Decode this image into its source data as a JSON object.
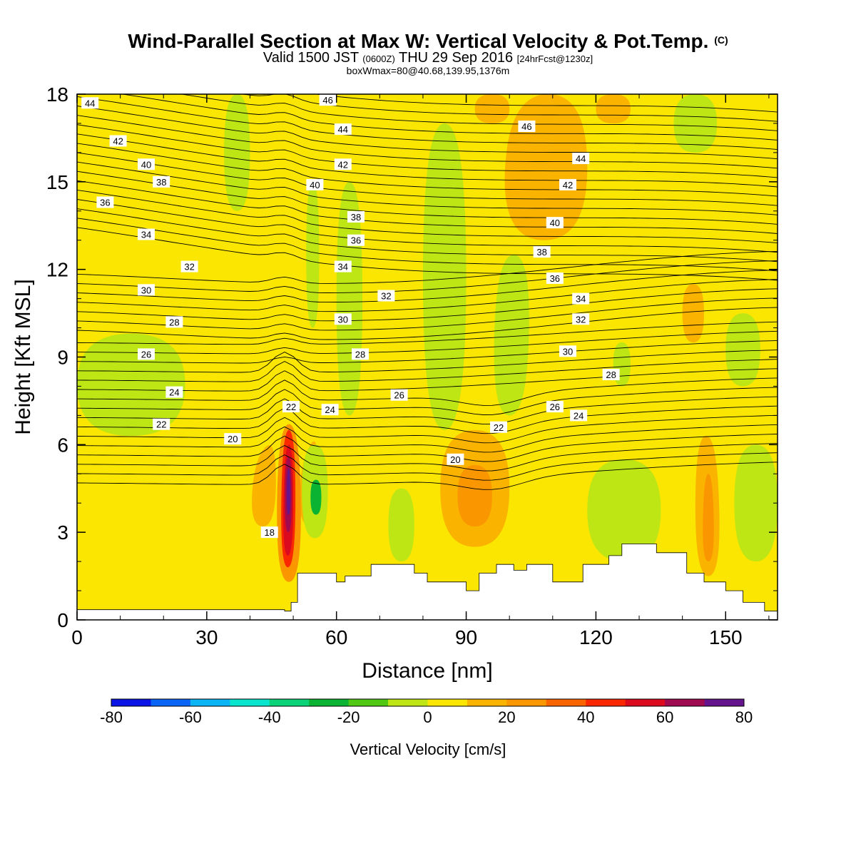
{
  "header": {
    "title": "Wind-Parallel Section at Max W: Vertical Velocity & Pot.Temp.",
    "copyright_mark": "(C)",
    "subtitle_a": "Valid 1500 JST",
    "subtitle_b": "(0600Z)",
    "subtitle_c": "THU 29 Sep 2016",
    "subtitle_d": "[24hrFcst@1230z]",
    "box_info": "boxWmax=80@40.68,139.95,1376m"
  },
  "chart_data": {
    "type": "heatmap",
    "xlabel": "Distance [nm]",
    "ylabel": "Height [Kft MSL]",
    "xlim": [
      0,
      162
    ],
    "ylim": [
      0,
      18
    ],
    "xticks": [
      0,
      30,
      60,
      90,
      120,
      150
    ],
    "yticks": [
      0,
      3,
      6,
      9,
      12,
      15,
      18
    ],
    "colorbar": {
      "label": "Vertical Velocity [cm/s]",
      "ticks": [
        -80,
        -60,
        -40,
        -20,
        0,
        20,
        40,
        60,
        80
      ],
      "bins": [
        -80,
        -70,
        -60,
        -50,
        -40,
        -30,
        -20,
        -10,
        0,
        10,
        20,
        30,
        40,
        50,
        60,
        70,
        80
      ],
      "colors": [
        "#0a14e6",
        "#0a64f5",
        "#0ab4f5",
        "#0ae6cd",
        "#0ad278",
        "#0ab432",
        "#50c814",
        "#bee614",
        "#fae600",
        "#fab400",
        "#fa9600",
        "#fa6400",
        "#fa2800",
        "#dc0a1e",
        "#a00a50",
        "#64148c"
      ]
    },
    "background_w_bin": 0,
    "terrain": [
      [
        0,
        0.35
      ],
      [
        48,
        0.35
      ],
      [
        48,
        0.3
      ],
      [
        49,
        0.3
      ],
      [
        49,
        0.3
      ],
      [
        49.5,
        0.3
      ],
      [
        49.5,
        0.6
      ],
      [
        51,
        0.6
      ],
      [
        51,
        1.6
      ],
      [
        60,
        1.6
      ],
      [
        60,
        1.3
      ],
      [
        62,
        1.3
      ],
      [
        62,
        1.5
      ],
      [
        68,
        1.5
      ],
      [
        68,
        1.9
      ],
      [
        73,
        1.9
      ],
      [
        73,
        1.9
      ],
      [
        78,
        1.9
      ],
      [
        78,
        1.6
      ],
      [
        81,
        1.6
      ],
      [
        81,
        1.3
      ],
      [
        90,
        1.3
      ],
      [
        90,
        1.0
      ],
      [
        93,
        1.0
      ],
      [
        93,
        1.6
      ],
      [
        97,
        1.6
      ],
      [
        97,
        1.9
      ],
      [
        101,
        1.9
      ],
      [
        101,
        1.7
      ],
      [
        104,
        1.7
      ],
      [
        104,
        1.9
      ],
      [
        110,
        1.9
      ],
      [
        110,
        1.3
      ],
      [
        117,
        1.3
      ],
      [
        117,
        1.9
      ],
      [
        123,
        1.9
      ],
      [
        123,
        2.2
      ],
      [
        126,
        2.2
      ],
      [
        126,
        2.6
      ],
      [
        134,
        2.6
      ],
      [
        134,
        2.3
      ],
      [
        141,
        2.3
      ],
      [
        141,
        1.6
      ],
      [
        145,
        1.6
      ],
      [
        145,
        1.3
      ],
      [
        150,
        1.3
      ],
      [
        150,
        1.0
      ],
      [
        154,
        1.0
      ],
      [
        154,
        0.6
      ],
      [
        159,
        0.6
      ],
      [
        159,
        0.3
      ],
      [
        162,
        0.3
      ]
    ],
    "w_regions": [
      {
        "bin": 9,
        "pts": [
          [
            40,
            3.2
          ],
          [
            46,
            3.2
          ],
          [
            46,
            6.3
          ],
          [
            41,
            5.5
          ]
        ]
      },
      {
        "bin": 9,
        "pts": [
          [
            52,
            5.5
          ],
          [
            56,
            6.5
          ],
          [
            55,
            3.0
          ],
          [
            51,
            3.5
          ]
        ]
      },
      {
        "bin": 10,
        "pts": [
          [
            46,
            1.3
          ],
          [
            52,
            1.3
          ],
          [
            51.5,
            6.7
          ],
          [
            46.5,
            6.7
          ]
        ]
      },
      {
        "bin": 12,
        "pts": [
          [
            47,
            1.8
          ],
          [
            50.5,
            1.8
          ],
          [
            50.5,
            6.5
          ],
          [
            47.5,
            6.5
          ]
        ]
      },
      {
        "bin": 13,
        "pts": [
          [
            47.5,
            2.2
          ],
          [
            50,
            2.2
          ],
          [
            50,
            6.0
          ],
          [
            48,
            6.0
          ]
        ]
      },
      {
        "bin": 14,
        "pts": [
          [
            48,
            3.0
          ],
          [
            49.7,
            3.0
          ],
          [
            49.6,
            5.6
          ],
          [
            48.2,
            5.6
          ]
        ]
      },
      {
        "bin": 15,
        "pts": [
          [
            48.4,
            3.6
          ],
          [
            49.4,
            3.6
          ],
          [
            49.3,
            5.2
          ],
          [
            48.6,
            5.2
          ]
        ]
      },
      {
        "bin": 7,
        "pts": [
          [
            52,
            2.8
          ],
          [
            58,
            2.8
          ],
          [
            58,
            6.0
          ],
          [
            52,
            6.0
          ]
        ]
      },
      {
        "bin": 5,
        "pts": [
          [
            54,
            3.6
          ],
          [
            56.5,
            3.6
          ],
          [
            56.5,
            4.8
          ],
          [
            54,
            4.8
          ]
        ]
      },
      {
        "bin": 7,
        "pts": [
          [
            72,
            2.0
          ],
          [
            78,
            2.0
          ],
          [
            78,
            4.5
          ],
          [
            72,
            4.5
          ]
        ]
      },
      {
        "bin": 9,
        "pts": [
          [
            84,
            2.5
          ],
          [
            100,
            2.5
          ],
          [
            100,
            6.5
          ],
          [
            84,
            6.5
          ]
        ]
      },
      {
        "bin": 10,
        "pts": [
          [
            88,
            3.2
          ],
          [
            96,
            3.2
          ],
          [
            96,
            5.3
          ],
          [
            88,
            5.3
          ]
        ]
      },
      {
        "bin": 9,
        "pts": [
          [
            143,
            1.5
          ],
          [
            149,
            1.5
          ],
          [
            148,
            6.3
          ],
          [
            143,
            6.3
          ]
        ]
      },
      {
        "bin": 10,
        "pts": [
          [
            144.5,
            2.0
          ],
          [
            147.5,
            2.0
          ],
          [
            147,
            5.0
          ],
          [
            145,
            5.0
          ]
        ]
      },
      {
        "bin": 7,
        "pts": [
          [
            96,
            7.0
          ],
          [
            104,
            7.0
          ],
          [
            105,
            12.5
          ],
          [
            97,
            12.5
          ]
        ]
      },
      {
        "bin": 7,
        "pts": [
          [
            124,
            8.0
          ],
          [
            128,
            8.0
          ],
          [
            128,
            9.5
          ],
          [
            124,
            9.5
          ]
        ]
      },
      {
        "bin": 7,
        "pts": [
          [
            150,
            8.0
          ],
          [
            158,
            8.0
          ],
          [
            158,
            10.5
          ],
          [
            150,
            10.5
          ]
        ]
      },
      {
        "bin": 7,
        "pts": [
          [
            138,
            16.0
          ],
          [
            148,
            16.0
          ],
          [
            148,
            18.0
          ],
          [
            138,
            18.0
          ]
        ]
      },
      {
        "bin": 9,
        "pts": [
          [
            98,
            13.0
          ],
          [
            118,
            13.0
          ],
          [
            118,
            18.0
          ],
          [
            100,
            18.0
          ]
        ]
      },
      {
        "bin": 9,
        "pts": [
          [
            92,
            17.0
          ],
          [
            100,
            17.0
          ],
          [
            100,
            18.0
          ],
          [
            92,
            18.0
          ]
        ]
      },
      {
        "bin": 9,
        "pts": [
          [
            120,
            17.0
          ],
          [
            128,
            17.0
          ],
          [
            128,
            18.0
          ],
          [
            120,
            18.0
          ]
        ]
      },
      {
        "bin": 9,
        "pts": [
          [
            140,
            9.5
          ],
          [
            145,
            9.5
          ],
          [
            145,
            11.5
          ],
          [
            140,
            11.5
          ]
        ]
      },
      {
        "bin": 7,
        "pts": [
          [
            53,
            10.0
          ],
          [
            56,
            10.0
          ],
          [
            56,
            15.0
          ],
          [
            53,
            15.0
          ]
        ]
      },
      {
        "bin": 7,
        "pts": [
          [
            0,
            6.3
          ],
          [
            25,
            6.3
          ],
          [
            25,
            9.8
          ],
          [
            0,
            9.8
          ]
        ]
      },
      {
        "bin": 7,
        "pts": [
          [
            80,
            6.5
          ],
          [
            90,
            6.5
          ],
          [
            90,
            17.0
          ],
          [
            80,
            17.0
          ]
        ]
      },
      {
        "bin": 7,
        "pts": [
          [
            34,
            14.0
          ],
          [
            40,
            14.0
          ],
          [
            40,
            18.0
          ],
          [
            34,
            18.0
          ]
        ]
      },
      {
        "bin": 7,
        "pts": [
          [
            60,
            7.0
          ],
          [
            66,
            7.0
          ],
          [
            66,
            15.0
          ],
          [
            60,
            15.0
          ]
        ]
      },
      {
        "bin": 7,
        "pts": [
          [
            118,
            2.0
          ],
          [
            135,
            2.0
          ],
          [
            135,
            5.5
          ],
          [
            118,
            5.5
          ]
        ]
      },
      {
        "bin": 7,
        "pts": [
          [
            152,
            2.0
          ],
          [
            162,
            2.0
          ],
          [
            162,
            6.0
          ],
          [
            152,
            6.0
          ]
        ]
      }
    ],
    "theta_labels": [
      {
        "t": "44",
        "x": 3,
        "y": 17.7
      },
      {
        "t": "42",
        "x": 9.5,
        "y": 16.4
      },
      {
        "t": "40",
        "x": 16,
        "y": 15.6
      },
      {
        "t": "38",
        "x": 19.5,
        "y": 15.0
      },
      {
        "t": "36",
        "x": 6.5,
        "y": 14.3
      },
      {
        "t": "34",
        "x": 16,
        "y": 13.2
      },
      {
        "t": "32",
        "x": 26,
        "y": 12.1
      },
      {
        "t": "30",
        "x": 16,
        "y": 11.3
      },
      {
        "t": "28",
        "x": 22.5,
        "y": 10.2
      },
      {
        "t": "26",
        "x": 16,
        "y": 9.1
      },
      {
        "t": "24",
        "x": 22.5,
        "y": 7.8
      },
      {
        "t": "22",
        "x": 19.5,
        "y": 6.7
      },
      {
        "t": "20",
        "x": 36,
        "y": 6.2
      },
      {
        "t": "18",
        "x": 44.5,
        "y": 3.0
      },
      {
        "t": "46",
        "x": 58,
        "y": 17.8
      },
      {
        "t": "44",
        "x": 61.5,
        "y": 16.8
      },
      {
        "t": "42",
        "x": 61.5,
        "y": 15.6
      },
      {
        "t": "40",
        "x": 55,
        "y": 14.9
      },
      {
        "t": "38",
        "x": 64.5,
        "y": 13.8
      },
      {
        "t": "36",
        "x": 64.5,
        "y": 13.0
      },
      {
        "t": "34",
        "x": 61.5,
        "y": 12.1
      },
      {
        "t": "32",
        "x": 71.5,
        "y": 11.1
      },
      {
        "t": "30",
        "x": 61.5,
        "y": 10.3
      },
      {
        "t": "28",
        "x": 65.5,
        "y": 9.1
      },
      {
        "t": "26",
        "x": 74.5,
        "y": 7.7
      },
      {
        "t": "24",
        "x": 58.5,
        "y": 7.2
      },
      {
        "t": "22",
        "x": 49.5,
        "y": 7.3
      },
      {
        "t": "20",
        "x": 87.5,
        "y": 5.5
      },
      {
        "t": "22",
        "x": 97.5,
        "y": 6.6
      },
      {
        "t": "24",
        "x": 116,
        "y": 7.0
      },
      {
        "t": "26",
        "x": 110.5,
        "y": 7.3
      },
      {
        "t": "28",
        "x": 123.5,
        "y": 8.4
      },
      {
        "t": "30",
        "x": 113.5,
        "y": 9.2
      },
      {
        "t": "32",
        "x": 116.5,
        "y": 10.3
      },
      {
        "t": "34",
        "x": 116.5,
        "y": 11.0
      },
      {
        "t": "36",
        "x": 110.5,
        "y": 11.7
      },
      {
        "t": "38",
        "x": 107.5,
        "y": 12.6
      },
      {
        "t": "40",
        "x": 110.5,
        "y": 13.6
      },
      {
        "t": "42",
        "x": 113.5,
        "y": 14.9
      },
      {
        "t": "44",
        "x": 116.5,
        "y": 15.8
      },
      {
        "t": "46",
        "x": 104,
        "y": 16.9
      }
    ]
  }
}
